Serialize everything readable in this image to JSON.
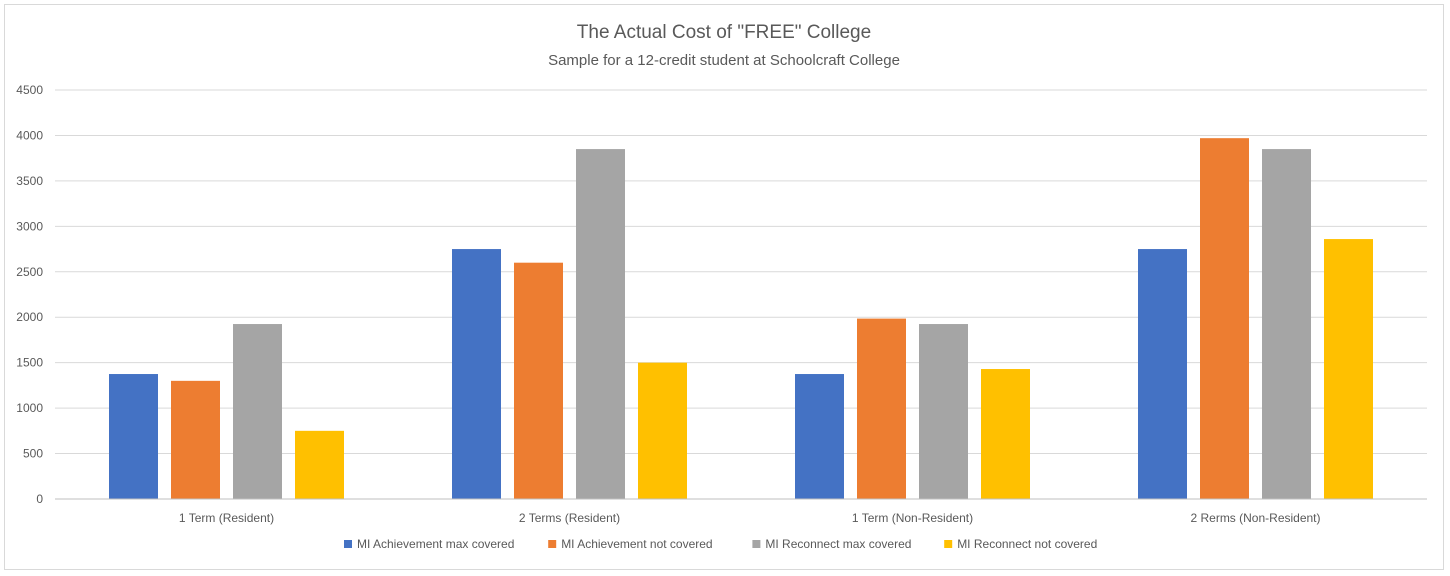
{
  "chart_data": {
    "type": "bar",
    "title": "The Actual Cost of \"FREE\" College",
    "subtitle": "Sample for a 12-credit student at Schoolcraft College",
    "xlabel": "",
    "ylabel": "",
    "ylim": [
      0,
      4500
    ],
    "yticks": [
      0,
      500,
      1000,
      1500,
      2000,
      2500,
      3000,
      3500,
      4000,
      4500
    ],
    "grid": true,
    "legend_position": "bottom",
    "categories": [
      "1 Term (Resident)",
      "2 Terms (Resident)",
      "1 Term (Non-Resident)",
      "2 Rerms (Non-Resident)"
    ],
    "series": [
      {
        "name": "MI Achievement max covered",
        "color": "#4472C4",
        "values": [
          1375,
          2750,
          1375,
          2750
        ]
      },
      {
        "name": "MI Achievement not covered",
        "color": "#ED7D31",
        "values": [
          1300,
          2600,
          1985,
          3970
        ]
      },
      {
        "name": "MI Reconnect max covered",
        "color": "#A5A5A5",
        "values": [
          1925,
          3850,
          1925,
          3850
        ]
      },
      {
        "name": "MI Reconnect not covered",
        "color": "#FFC000",
        "values": [
          750,
          1500,
          1430,
          2860
        ]
      }
    ]
  }
}
